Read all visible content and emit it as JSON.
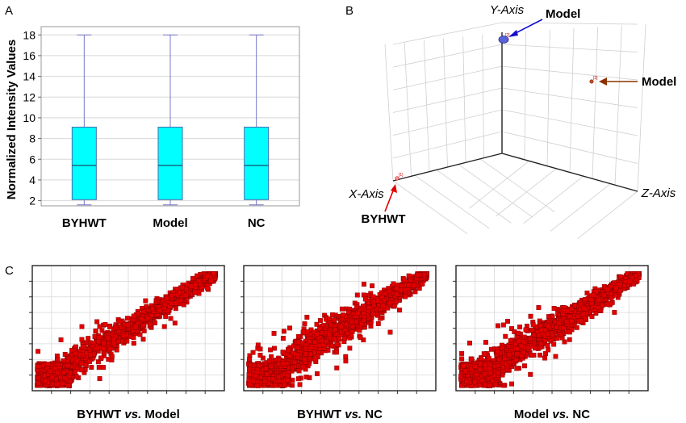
{
  "panels": {
    "a": {
      "letter": "A"
    },
    "b": {
      "letter": "B"
    },
    "c": {
      "letter": "C"
    }
  },
  "colors": {
    "box_fill": "#00ffff",
    "box_border": "#3e6fae",
    "whisker": "#7777cc",
    "scatter_point": "#e00000",
    "arrow_blue": "#1111cc",
    "arrow_brown": "#8b3200",
    "arrow_red": "#e00000",
    "grid": "#d8d8d8"
  },
  "chart_data": [
    {
      "type": "box",
      "panel": "A",
      "title": "",
      "ylabel": "Normalized Intensity Values",
      "xlabel": "",
      "ylim": [
        1.5,
        18.8
      ],
      "yticks": [
        2,
        4,
        6,
        8,
        10,
        12,
        14,
        16,
        18
      ],
      "grid": true,
      "categories": [
        "BYHWT",
        "Model",
        "NC"
      ],
      "boxes": [
        {
          "category": "BYHWT",
          "min": 1.6,
          "q1": 2.1,
          "median": 5.4,
          "q3": 9.1,
          "max": 18.0
        },
        {
          "category": "Model",
          "min": 1.6,
          "q1": 2.1,
          "median": 5.4,
          "q3": 9.1,
          "max": 18.0
        },
        {
          "category": "NC",
          "min": 1.6,
          "q1": 2.1,
          "median": 5.4,
          "q3": 9.1,
          "max": 18.0
        }
      ]
    },
    {
      "type": "scatter3d",
      "panel": "B",
      "axis_labels": {
        "x": "X-Axis",
        "y": "Y-Axis",
        "z": "Z-Axis"
      },
      "grid": true,
      "points": [
        {
          "label": "[1]",
          "annotation": "BYHWT"
        },
        {
          "label": "[2]",
          "annotation": "Model"
        },
        {
          "label": "[3]",
          "annotation": "Model"
        }
      ]
    },
    {
      "type": "scatter",
      "panel": "C",
      "title": "BYHWT vs. Model",
      "title_parts": [
        "BYHWT ",
        "vs.",
        " Model"
      ],
      "grid": true,
      "spread": 0.55
    },
    {
      "type": "scatter",
      "panel": "C",
      "title": "BYHWT vs. NC",
      "title_parts": [
        "BYHWT ",
        "vs.",
        " NC"
      ],
      "grid": true,
      "spread": 0.85
    },
    {
      "type": "scatter",
      "panel": "C",
      "title": "Model vs. NC",
      "title_parts": [
        "Model ",
        "vs.",
        " NC"
      ],
      "grid": true,
      "spread": 0.75
    }
  ]
}
